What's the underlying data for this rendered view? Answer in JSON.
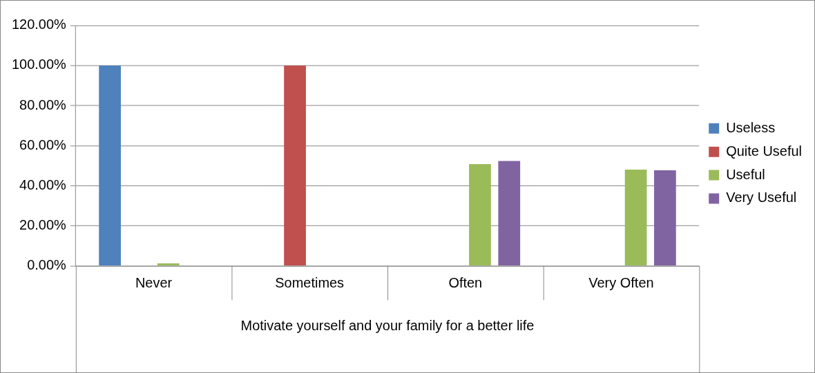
{
  "chart_data": {
    "type": "bar",
    "xlabel": "Motivate yourself and your family for a better life",
    "categories": [
      "Never",
      "Sometimes",
      "Often",
      "Very Often"
    ],
    "series": [
      {
        "name": "Useless",
        "color": "#4f81bd",
        "values": [
          100,
          0,
          0,
          0
        ]
      },
      {
        "name": "Quite Useful",
        "color": "#c0504d",
        "values": [
          0,
          100,
          0,
          0
        ]
      },
      {
        "name": "Useful",
        "color": "#9bbb59",
        "values": [
          1.2,
          0,
          50.8,
          48.0
        ]
      },
      {
        "name": "Very Useful",
        "color": "#8064a2",
        "values": [
          0,
          0,
          52.3,
          47.7
        ]
      }
    ],
    "ylim": [
      0,
      120
    ],
    "yticks": [
      {
        "value": 0,
        "label": "0.00%"
      },
      {
        "value": 20,
        "label": "20.00%"
      },
      {
        "value": 40,
        "label": "40.00%"
      },
      {
        "value": 60,
        "label": "60.00%"
      },
      {
        "value": 80,
        "label": "80.00%"
      },
      {
        "value": 100,
        "label": "100.00%"
      },
      {
        "value": 120,
        "label": "120.00%"
      }
    ],
    "grid": "y",
    "legend": "right"
  }
}
